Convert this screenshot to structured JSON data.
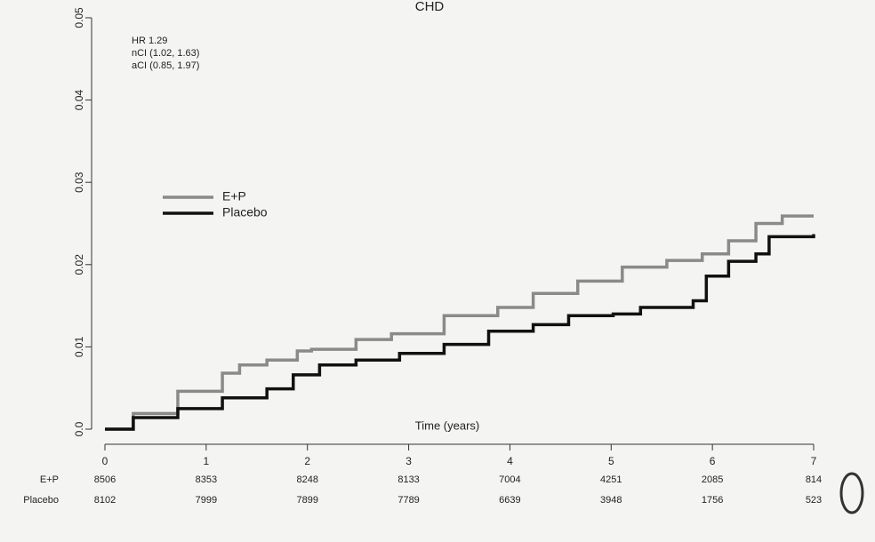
{
  "chart_data": {
    "type": "step",
    "title": "CHD",
    "xlabel": "Time (years)",
    "annotations": [
      "HR  1.29",
      "nCI  (1.02, 1.63)",
      "aCI  (0.85, 1.97)"
    ],
    "xlim": [
      0,
      7
    ],
    "xticks": [
      0,
      1,
      2,
      3,
      4,
      5,
      6,
      7
    ],
    "ylim": [
      0,
      0.05
    ],
    "yticks": [
      {
        "value": 0,
        "label": "0.0"
      },
      0.01,
      0.02,
      0.03,
      0.04,
      0.05
    ],
    "grid": false,
    "series": [
      {
        "name": "E+P",
        "color": "#8a8a8a",
        "x": [
          0,
          0.28,
          0.72,
          1.16,
          1.33,
          1.6,
          1.9,
          2.04,
          2.48,
          2.83,
          3.35,
          3.88,
          4.23,
          4.67,
          5.11,
          5.55,
          5.9,
          6.16,
          6.43,
          6.69,
          7
        ],
        "values": [
          0,
          0.0019,
          0.0046,
          0.0068,
          0.0078,
          0.0084,
          0.0095,
          0.0097,
          0.0109,
          0.0116,
          0.0138,
          0.0148,
          0.0165,
          0.018,
          0.0197,
          0.0205,
          0.0213,
          0.0229,
          0.025,
          0.0259,
          0.0259
        ]
      },
      {
        "name": "Placebo",
        "color": "#111111",
        "x": [
          0,
          0.28,
          0.72,
          1.16,
          1.6,
          1.86,
          2.12,
          2.48,
          2.91,
          3.35,
          3.79,
          4.23,
          4.58,
          5.02,
          5.29,
          5.81,
          5.94,
          6.16,
          6.43,
          6.56,
          7
        ],
        "values": [
          0,
          0.0014,
          0.0025,
          0.0038,
          0.0049,
          0.0066,
          0.0078,
          0.0084,
          0.0092,
          0.0103,
          0.0119,
          0.0127,
          0.0138,
          0.014,
          0.0148,
          0.0156,
          0.0186,
          0.0204,
          0.0213,
          0.0234,
          0.0237
        ]
      }
    ],
    "risk_table": [
      {
        "label": "E+P",
        "counts": [
          8506,
          8353,
          8248,
          8133,
          7004,
          4251,
          2085,
          814
        ]
      },
      {
        "label": "Placebo",
        "counts": [
          8102,
          7999,
          7899,
          7789,
          6639,
          3948,
          1756,
          523
        ]
      }
    ]
  }
}
